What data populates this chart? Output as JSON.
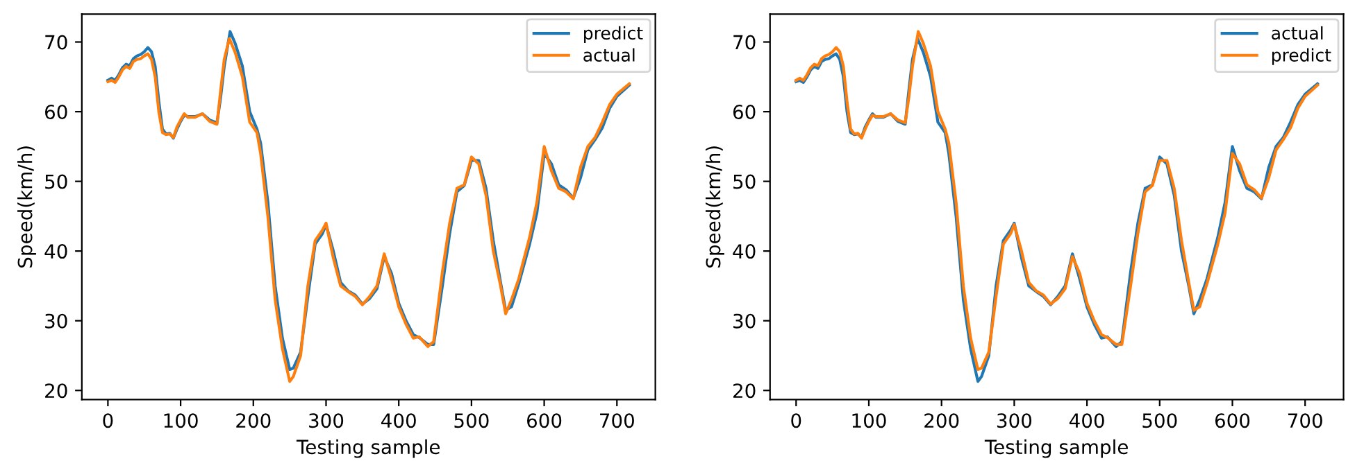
{
  "chart_data": [
    {
      "type": "line",
      "xlabel": "Testing sample",
      "ylabel": "Speed(km/h)",
      "xlim": [
        -35.85,
        752.85
      ],
      "ylim": [
        18.7,
        74.0
      ],
      "xticks": [
        0,
        100,
        200,
        300,
        400,
        500,
        600,
        700
      ],
      "yticks": [
        20,
        30,
        40,
        50,
        60,
        70
      ],
      "grid": false,
      "legend": "top right",
      "marker": "none",
      "line_style": "solid",
      "series": [
        {
          "name": "predict",
          "color": "#1f77b4",
          "x": [
            0,
            5,
            10,
            15,
            20,
            25,
            30,
            35,
            40,
            45,
            50,
            55,
            60,
            65,
            70,
            75,
            80,
            85,
            90,
            95,
            100,
            105,
            110,
            120,
            130,
            140,
            150,
            155,
            160,
            168,
            175,
            185,
            195,
            205,
            210,
            220,
            230,
            240,
            250,
            255,
            265,
            275,
            285,
            295,
            300,
            310,
            320,
            330,
            340,
            350,
            360,
            370,
            380,
            390,
            400,
            410,
            420,
            428,
            440,
            448,
            460,
            470,
            480,
            490,
            500,
            510,
            520,
            530,
            540,
            547,
            555,
            565,
            580,
            590,
            600,
            610,
            620,
            630,
            640,
            650,
            660,
            670,
            680,
            690,
            700,
            717
          ],
          "values": [
            64.5,
            64.8,
            64.5,
            65.3,
            66.3,
            66.8,
            66.6,
            67.6,
            68,
            68.2,
            68.6,
            69.2,
            68.6,
            66.5,
            61.5,
            57.5,
            56.8,
            56.9,
            56.2,
            57.5,
            58.6,
            59.5,
            59.3,
            59.3,
            59.7,
            58.8,
            58.4,
            62,
            66.5,
            71.5,
            69.8,
            66.5,
            60,
            57.5,
            55.5,
            47,
            35,
            27.5,
            23,
            23.2,
            25.5,
            33.5,
            41,
            42.5,
            43.8,
            40,
            35.5,
            34.3,
            33.7,
            32.4,
            33.2,
            34.6,
            39.2,
            36.8,
            32.5,
            30,
            28,
            27.6,
            26.6,
            26.6,
            35,
            42.5,
            48.5,
            49.4,
            53,
            53,
            49,
            41.5,
            35.5,
            31.5,
            32,
            35.3,
            41,
            45.5,
            54,
            52.5,
            49.5,
            48.8,
            47.6,
            50.5,
            54.5,
            56,
            57.7,
            60.5,
            62.2,
            63.8
          ]
        },
        {
          "name": "actual",
          "color": "#ff7f0e",
          "x": [
            0,
            5,
            10,
            15,
            20,
            25,
            30,
            35,
            40,
            45,
            50,
            55,
            60,
            65,
            70,
            75,
            80,
            85,
            90,
            95,
            100,
            105,
            110,
            120,
            130,
            140,
            150,
            155,
            160,
            167,
            175,
            185,
            195,
            205,
            210,
            220,
            230,
            240,
            250,
            255,
            265,
            275,
            285,
            295,
            300,
            310,
            320,
            330,
            340,
            350,
            360,
            370,
            380,
            390,
            400,
            410,
            420,
            428,
            440,
            448,
            460,
            470,
            480,
            490,
            500,
            510,
            520,
            530,
            540,
            547,
            555,
            565,
            580,
            590,
            600,
            610,
            620,
            630,
            640,
            650,
            660,
            670,
            680,
            690,
            700,
            717
          ],
          "values": [
            64.3,
            64.5,
            64.2,
            65,
            66,
            66.5,
            66.2,
            67.2,
            67.5,
            67.6,
            68,
            68.3,
            67.5,
            65,
            60,
            57,
            56.7,
            56.8,
            56.3,
            57.8,
            58.8,
            59.7,
            59.2,
            59.2,
            59.7,
            58.6,
            58.2,
            63,
            67.5,
            70.5,
            68.5,
            65,
            58.5,
            57,
            54,
            45,
            33,
            26,
            21.3,
            22,
            25,
            35,
            41.5,
            43,
            44,
            39,
            35,
            34.2,
            33.5,
            32.3,
            33.5,
            35,
            39.6,
            36,
            32,
            29.5,
            27.5,
            27.7,
            26.3,
            27,
            37,
            44,
            49,
            49.5,
            53.5,
            52.5,
            48,
            40,
            35,
            31,
            33,
            36,
            42,
            47,
            55,
            51.5,
            49,
            48.5,
            47.5,
            52,
            55,
            56.3,
            58.5,
            61,
            62.5,
            64
          ]
        }
      ]
    },
    {
      "type": "line",
      "xlabel": "Testing sample",
      "ylabel": "Speed(km/h)",
      "xlim": [
        -35.85,
        752.85
      ],
      "ylim": [
        18.7,
        74.0
      ],
      "xticks": [
        0,
        100,
        200,
        300,
        400,
        500,
        600,
        700
      ],
      "yticks": [
        20,
        30,
        40,
        50,
        60,
        70
      ],
      "grid": false,
      "legend": "top right",
      "marker": "none",
      "line_style": "solid",
      "series": [
        {
          "name": "actual",
          "color": "#1f77b4",
          "x": [
            0,
            5,
            10,
            15,
            20,
            25,
            30,
            35,
            40,
            45,
            50,
            55,
            60,
            65,
            70,
            75,
            80,
            85,
            90,
            95,
            100,
            105,
            110,
            120,
            130,
            140,
            150,
            155,
            160,
            167,
            175,
            185,
            195,
            205,
            210,
            220,
            230,
            240,
            250,
            255,
            265,
            275,
            285,
            295,
            300,
            310,
            320,
            330,
            340,
            350,
            360,
            370,
            380,
            390,
            400,
            410,
            420,
            428,
            440,
            448,
            460,
            470,
            480,
            490,
            500,
            510,
            520,
            530,
            540,
            547,
            555,
            565,
            580,
            590,
            600,
            610,
            620,
            630,
            640,
            650,
            660,
            670,
            680,
            690,
            700,
            717
          ],
          "values": [
            64.3,
            64.5,
            64.2,
            65,
            66,
            66.5,
            66.2,
            67.2,
            67.5,
            67.6,
            68,
            68.3,
            67.5,
            65,
            60,
            57,
            56.7,
            56.8,
            56.3,
            57.8,
            58.8,
            59.7,
            59.2,
            59.2,
            59.7,
            58.6,
            58.2,
            63,
            67.5,
            70.5,
            68.5,
            65,
            58.5,
            57,
            54,
            45,
            33,
            26,
            21.3,
            22,
            25,
            35,
            41.5,
            43,
            44,
            39,
            35,
            34.2,
            33.5,
            32.3,
            33.5,
            35,
            39.6,
            36,
            32,
            29.5,
            27.5,
            27.7,
            26.3,
            27,
            37,
            44,
            49,
            49.5,
            53.5,
            52.5,
            48,
            40,
            35,
            31,
            33,
            36,
            42,
            47,
            55,
            51.5,
            49,
            48.5,
            47.5,
            52,
            55,
            56.3,
            58.5,
            61,
            62.5,
            64
          ]
        },
        {
          "name": "predict",
          "color": "#ff7f0e",
          "x": [
            0,
            5,
            10,
            15,
            20,
            25,
            30,
            35,
            40,
            45,
            50,
            55,
            60,
            65,
            70,
            75,
            80,
            85,
            90,
            95,
            100,
            105,
            110,
            120,
            130,
            140,
            150,
            155,
            160,
            168,
            175,
            185,
            195,
            205,
            210,
            220,
            230,
            240,
            250,
            255,
            265,
            275,
            285,
            295,
            300,
            310,
            320,
            330,
            340,
            350,
            360,
            370,
            380,
            390,
            400,
            410,
            420,
            428,
            440,
            448,
            460,
            470,
            480,
            490,
            500,
            510,
            520,
            530,
            540,
            547,
            555,
            565,
            580,
            590,
            600,
            610,
            620,
            630,
            640,
            650,
            660,
            670,
            680,
            690,
            700,
            717
          ],
          "values": [
            64.5,
            64.8,
            64.5,
            65.3,
            66.3,
            66.8,
            66.6,
            67.6,
            68,
            68.2,
            68.6,
            69.2,
            68.6,
            66.5,
            61.5,
            57.5,
            56.8,
            56.9,
            56.2,
            57.5,
            58.6,
            59.5,
            59.3,
            59.3,
            59.7,
            58.8,
            58.4,
            62,
            66.5,
            71.5,
            69.8,
            66.5,
            60,
            57.5,
            55.5,
            47,
            35,
            27.5,
            23,
            23.2,
            25.5,
            33.5,
            41,
            42.5,
            43.8,
            40,
            35.5,
            34.3,
            33.7,
            32.4,
            33.2,
            34.6,
            39.2,
            36.8,
            32.5,
            30,
            28,
            27.6,
            26.6,
            26.6,
            35,
            42.5,
            48.5,
            49.4,
            53,
            53,
            49,
            41.5,
            35.5,
            31.5,
            32,
            35.3,
            41,
            45.5,
            54,
            52.5,
            49.5,
            48.8,
            47.6,
            50.5,
            54.5,
            56,
            57.7,
            60.5,
            62.2,
            63.8
          ]
        }
      ]
    }
  ]
}
